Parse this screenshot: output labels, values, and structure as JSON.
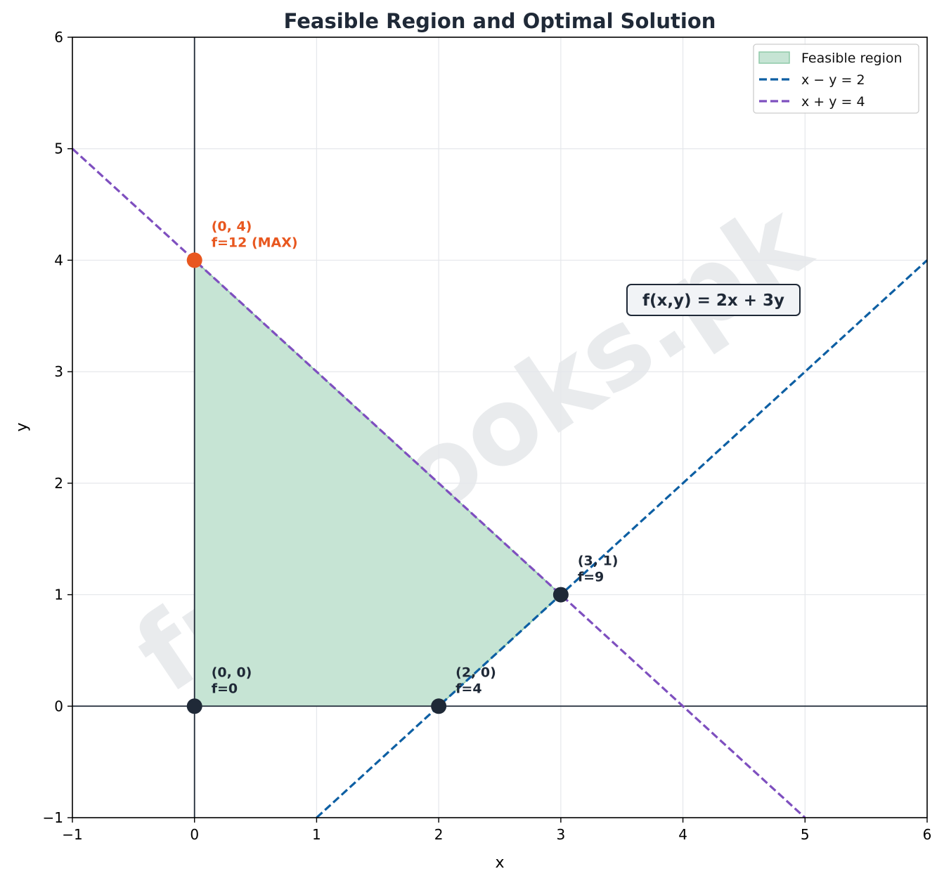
{
  "chart_data": {
    "type": "line",
    "title": "Feasible Region and Optimal Solution",
    "xlabel": "x",
    "ylabel": "y",
    "xlim": [
      -1,
      6
    ],
    "ylim": [
      -1,
      6
    ],
    "xticks": [
      -1,
      0,
      1,
      2,
      3,
      4,
      5,
      6
    ],
    "yticks": [
      -1,
      0,
      1,
      2,
      3,
      4,
      5,
      6
    ],
    "grid": true,
    "legend_position": "top-right",
    "objective_label": "f(x,y) = 2x + 3y",
    "watermark": "freebooks.pk",
    "feasible_region": {
      "name": "Feasible region",
      "color": "#c6e4d4",
      "edge_color": "#8fcaa8",
      "polygon": [
        [
          0,
          0
        ],
        [
          2,
          0
        ],
        [
          3,
          1
        ],
        [
          0,
          4
        ]
      ]
    },
    "series": [
      {
        "name": "x − y = 2",
        "color": "#0d5fa3",
        "x": [
          1,
          6
        ],
        "y": [
          -1,
          4
        ]
      },
      {
        "name": "x + y = 4",
        "color": "#7e4fbf",
        "x": [
          -1,
          5
        ],
        "y": [
          5,
          -1
        ]
      }
    ],
    "vertices": [
      {
        "x": 0,
        "y": 0,
        "label": "(0, 0)",
        "value_label": "f=0",
        "color": "#1f2937"
      },
      {
        "x": 2,
        "y": 0,
        "label": "(2, 0)",
        "value_label": "f=4",
        "color": "#1f2937"
      },
      {
        "x": 3,
        "y": 1,
        "label": "(3, 1)",
        "value_label": "f=9",
        "color": "#1f2937"
      },
      {
        "x": 0,
        "y": 4,
        "label": "(0, 4)",
        "value_label": "f=12  (MAX)",
        "color": "#e8571f"
      }
    ]
  }
}
